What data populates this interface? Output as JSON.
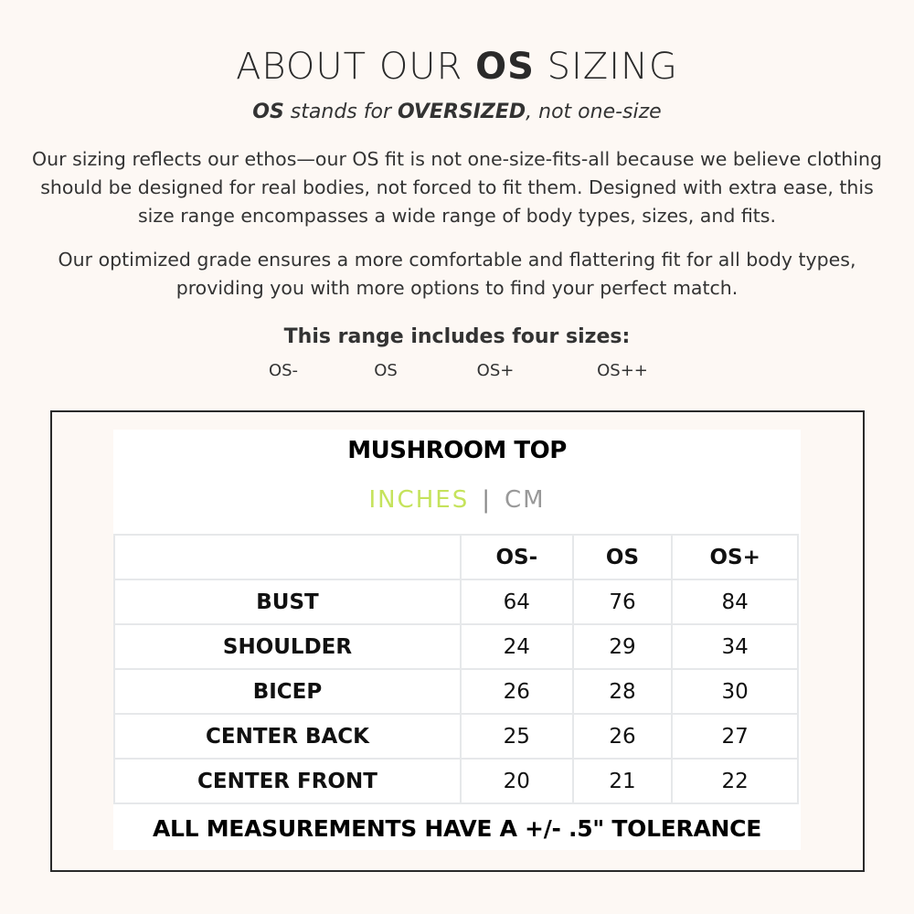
{
  "header": {
    "title_pre": "ABOUT OUR ",
    "title_bold": "OS",
    "title_post": " SIZING",
    "subtitle_b1": "OS",
    "subtitle_t1": " stands for ",
    "subtitle_b2": "OVERSIZED",
    "subtitle_t2": ", not one-size"
  },
  "paragraphs": [
    "Our sizing reflects our ethos—our OS fit is not one-size-fits-all because we believe clothing should be designed for real bodies, not forced to fit them. Designed with extra ease, this size range encompasses a wide range of body types, sizes, and fits.",
    "Our optimized grade ensures a more comfortable and flattering fit for all body types, providing you with more options to find your perfect match."
  ],
  "range": {
    "heading": "This range includes four sizes:",
    "sizes": [
      "OS-",
      "OS",
      "OS+",
      "OS++"
    ]
  },
  "chart": {
    "title": "MUSHROOM TOP",
    "unit_active": "INCHES",
    "separator": "|",
    "unit_other": "CM",
    "active_color": "#c5e35c",
    "columns": [
      "",
      "OS-",
      "OS",
      "OS+"
    ],
    "rows": [
      [
        "BUST",
        "64",
        "76",
        "84"
      ],
      [
        "SHOULDER",
        "24",
        "29",
        "34"
      ],
      [
        "BICEP",
        "26",
        "28",
        "30"
      ],
      [
        "CENTER BACK",
        "25",
        "26",
        "27"
      ],
      [
        "CENTER FRONT",
        "20",
        "21",
        "22"
      ]
    ],
    "footer": "ALL MEASUREMENTS HAVE A +/- .5\" TOLERANCE"
  }
}
